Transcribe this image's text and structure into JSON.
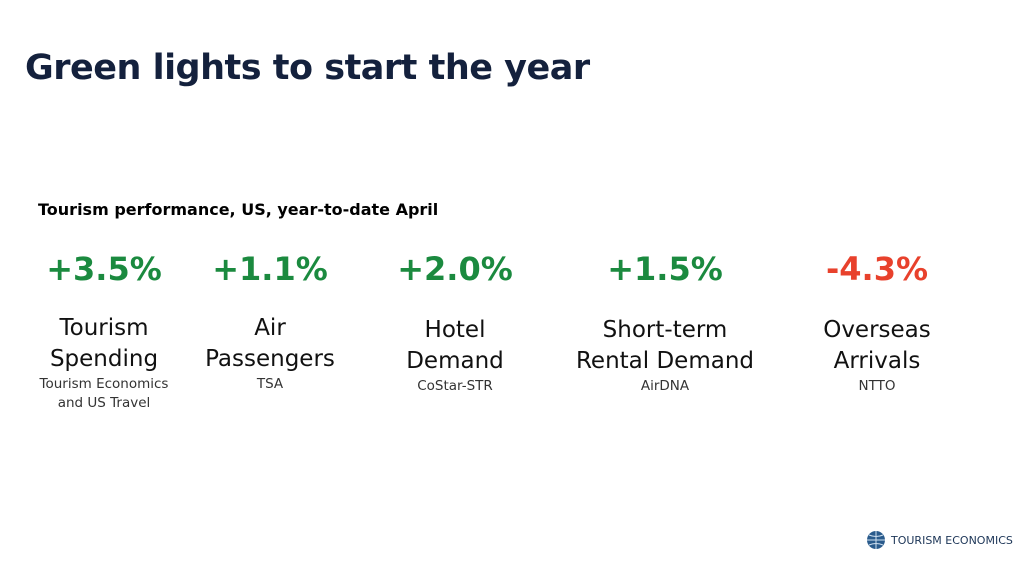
{
  "header": {
    "title": "Green lights to start the year"
  },
  "subtitle": "Tourism performance, US, year-to-date April",
  "metrics": [
    {
      "value": "+3.5%",
      "color": "#1b8a3f",
      "label": [
        "Tourism",
        "Spending"
      ],
      "source": [
        "Tourism Economics",
        "and US Travel"
      ]
    },
    {
      "value": "+1.1%",
      "color": "#1b8a3f",
      "label": [
        "Air",
        "Passengers"
      ],
      "source": [
        "TSA"
      ]
    },
    {
      "value": "+2.0%",
      "color": "#1b8a3f",
      "label": [
        "Hotel",
        "Demand"
      ],
      "source": [
        "CoStar-STR"
      ]
    },
    {
      "value": "+1.5%",
      "color": "#1b8a3f",
      "label": [
        "Short-term",
        "Rental Demand"
      ],
      "source": [
        "AirDNA"
      ]
    },
    {
      "value": "-4.3%",
      "color": "#e8412c",
      "label": [
        "Overseas",
        "Arrivals"
      ],
      "source": [
        "NTTO"
      ]
    }
  ],
  "logo": {
    "text": "TOURISM ECONOMICS"
  }
}
